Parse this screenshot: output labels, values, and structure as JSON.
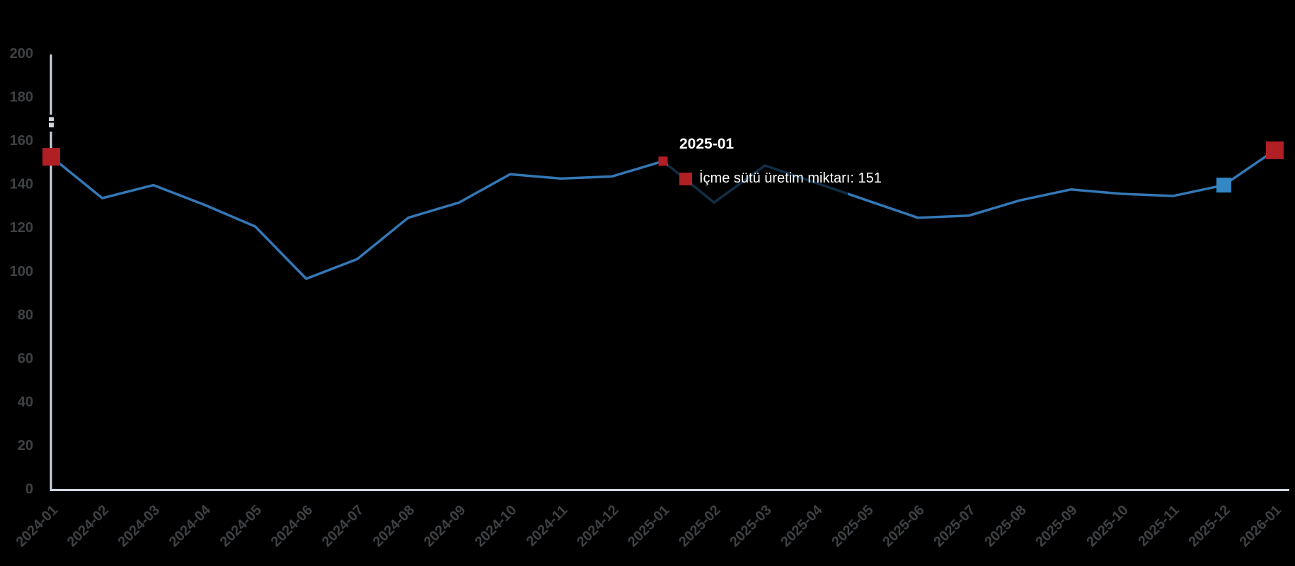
{
  "page": {
    "background": "#000000"
  },
  "chart_data": {
    "type": "line",
    "title": "",
    "xlabel": "",
    "ylabel": "",
    "x": [
      "2024-01",
      "2024-02",
      "2024-03",
      "2024-04",
      "2024-05",
      "2024-06",
      "2024-07",
      "2024-08",
      "2024-09",
      "2024-10",
      "2024-11",
      "2024-12",
      "2025-01",
      "2025-02",
      "2025-03",
      "2025-04",
      "2025-05",
      "2025-06",
      "2025-07",
      "2025-08",
      "2025-09",
      "2025-10",
      "2025-11",
      "2025-12",
      "2026-01"
    ],
    "series": [
      {
        "name": "İçme sütü üretim miktarı",
        "color": "#3478b6",
        "values": [
          153,
          134,
          140,
          131,
          121,
          97,
          106,
          125,
          132,
          145,
          143,
          144,
          151,
          132,
          149,
          141,
          133,
          125,
          126,
          133,
          138,
          136,
          135,
          140,
          156
        ]
      }
    ],
    "ylim": [
      0,
      200
    ],
    "yticks": [
      0,
      20,
      40,
      60,
      80,
      100,
      120,
      140,
      160,
      180,
      200
    ],
    "grid": false,
    "legend_position": "none"
  },
  "axes": {
    "line_color": "#ccd6e1",
    "tick_label_color": "#3f4245"
  },
  "markers": [
    {
      "x": "2024-01",
      "value": 153,
      "shape": "square",
      "color": "#b01f24",
      "size": 25,
      "role": "series-endpoint"
    },
    {
      "x": "2025-01",
      "value": 151,
      "shape": "square",
      "color": "#b01f24",
      "size": 13,
      "role": "hovered-point"
    },
    {
      "x": "2025-12",
      "value": 140,
      "shape": "square",
      "color": "#3287c4",
      "size": 21,
      "role": "highlighted-point"
    },
    {
      "x": "2026-01",
      "value": 156,
      "shape": "square",
      "color": "#b01f24",
      "size": 25,
      "role": "series-endpoint"
    }
  ],
  "tooltip": {
    "title": "2025-01",
    "series_label": "İçme sütü üretim miktarı: 151",
    "swatch_color": "#b01f24",
    "text_color": "#ffffff"
  }
}
